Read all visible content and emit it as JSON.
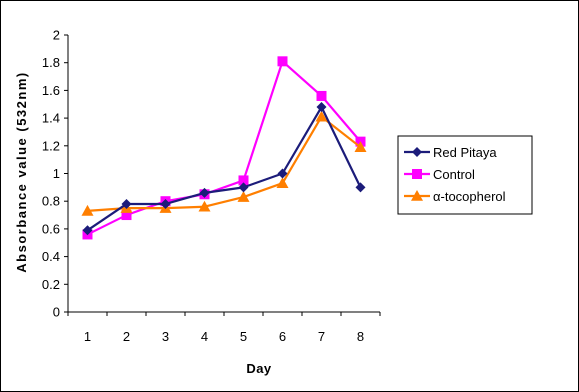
{
  "chart_data": {
    "type": "line",
    "categories": [
      "1",
      "2",
      "3",
      "4",
      "5",
      "6",
      "7",
      "8"
    ],
    "xlabel": "Day",
    "ylabel": "Absorbance value (532nm)",
    "ylim": [
      0,
      2
    ],
    "yticks": [
      "0",
      "0.2",
      "0.4",
      "0.6",
      "0.8",
      "1",
      "1.2",
      "1.4",
      "1.6",
      "1.8",
      "2"
    ],
    "grid": false,
    "legend_position": "right",
    "series": [
      {
        "name": "Red Pitaya",
        "color": "#1c1c7a",
        "marker": "diamond",
        "values": [
          0.59,
          0.78,
          0.78,
          0.86,
          0.9,
          1.0,
          1.48,
          0.9
        ]
      },
      {
        "name": "Control",
        "color": "#ff00ff",
        "marker": "square",
        "values": [
          0.56,
          0.7,
          0.8,
          0.85,
          0.95,
          1.81,
          1.56,
          1.23
        ]
      },
      {
        "name": "α-tocopherol",
        "color": "#ff7f00",
        "marker": "triangle",
        "values": [
          0.73,
          0.75,
          0.75,
          0.76,
          0.83,
          0.93,
          1.41,
          1.19
        ]
      }
    ]
  }
}
